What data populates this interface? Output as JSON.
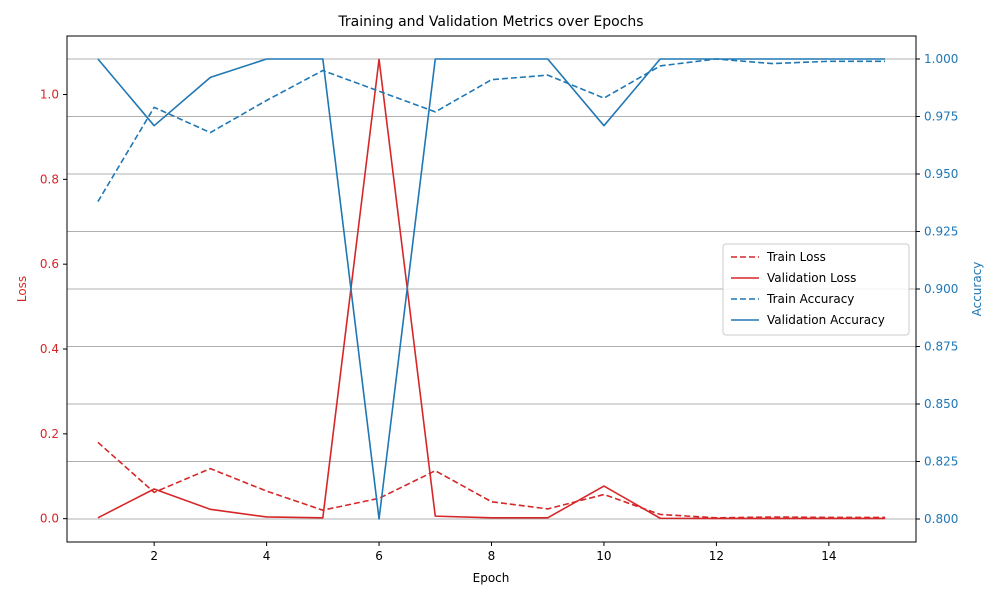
{
  "chart_data": {
    "type": "line",
    "title": "Training and Validation Metrics over Epochs",
    "xlabel": "Epoch",
    "ylabel_left": "Loss",
    "ylabel_right": "Accuracy",
    "x": [
      1,
      2,
      3,
      4,
      5,
      6,
      7,
      8,
      9,
      10,
      11,
      12,
      13,
      14,
      15
    ],
    "xlim": [
      0.45,
      15.55
    ],
    "xticks": [
      2,
      4,
      6,
      8,
      10,
      12,
      14
    ],
    "ylim_left": [
      -0.055,
      1.138
    ],
    "yticks_left": [
      0.0,
      0.2,
      0.4,
      0.6,
      0.8,
      1.0
    ],
    "ylim_right": [
      0.79,
      1.01
    ],
    "yticks_right": [
      0.8,
      0.825,
      0.85,
      0.875,
      0.9,
      0.925,
      0.95,
      0.975,
      1.0
    ],
    "grid": "horizontal lines at right-axis ticks",
    "legend_position": "center-right",
    "series": [
      {
        "name": "Train Loss",
        "axis": "left",
        "style": "dashed",
        "color": "#d62728",
        "values": [
          0.18,
          0.062,
          0.118,
          0.065,
          0.02,
          0.048,
          0.113,
          0.04,
          0.023,
          0.057,
          0.01,
          0.002,
          0.004,
          0.003,
          0.003
        ]
      },
      {
        "name": "Validation Loss",
        "axis": "left",
        "style": "solid",
        "color": "#d62728",
        "values": [
          0.002,
          0.07,
          0.022,
          0.004,
          0.002,
          1.083,
          0.006,
          0.002,
          0.002,
          0.077,
          0.001,
          0.0005,
          0.0005,
          0.0005,
          0.0005
        ]
      },
      {
        "name": "Train Accuracy",
        "axis": "right",
        "style": "dashed",
        "color": "#1f77b4",
        "values": [
          0.938,
          0.979,
          0.968,
          0.982,
          0.995,
          0.986,
          0.977,
          0.991,
          0.993,
          0.983,
          0.997,
          1.0,
          0.998,
          0.999,
          0.999
        ]
      },
      {
        "name": "Validation Accuracy",
        "axis": "right",
        "style": "solid",
        "color": "#1f77b4",
        "values": [
          1.0,
          0.971,
          0.992,
          1.0,
          1.0,
          0.8,
          1.0,
          1.0,
          1.0,
          0.971,
          1.0,
          1.0,
          1.0,
          1.0,
          1.0
        ]
      }
    ]
  },
  "colors": {
    "loss_axis": "#d62728",
    "accuracy_axis": "#1f77b4",
    "grid": "#b0b0b0"
  }
}
